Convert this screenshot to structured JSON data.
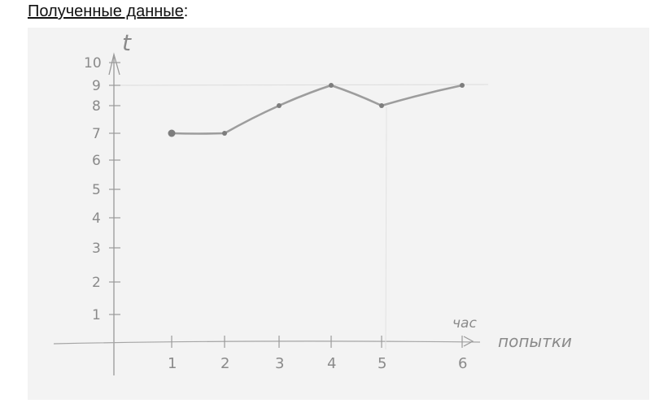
{
  "heading": {
    "text": "Полученные данные",
    "suffix": ":"
  },
  "chart_data": {
    "type": "line",
    "title": "",
    "ylabel": "t",
    "xlabel_top": "час",
    "xlabel": "попытки",
    "x": [
      1,
      2,
      3,
      4,
      5,
      6
    ],
    "y": [
      7,
      7,
      8,
      9,
      8,
      9
    ],
    "xlim": [
      0,
      6
    ],
    "ylim": [
      0,
      10
    ],
    "xticks": [
      "1",
      "2",
      "3",
      "4",
      "5",
      "6"
    ],
    "yticks": [
      "1",
      "2",
      "3",
      "4",
      "5",
      "6",
      "7",
      "8",
      "9",
      "10"
    ],
    "grid": false,
    "reference_line_y": 9
  }
}
